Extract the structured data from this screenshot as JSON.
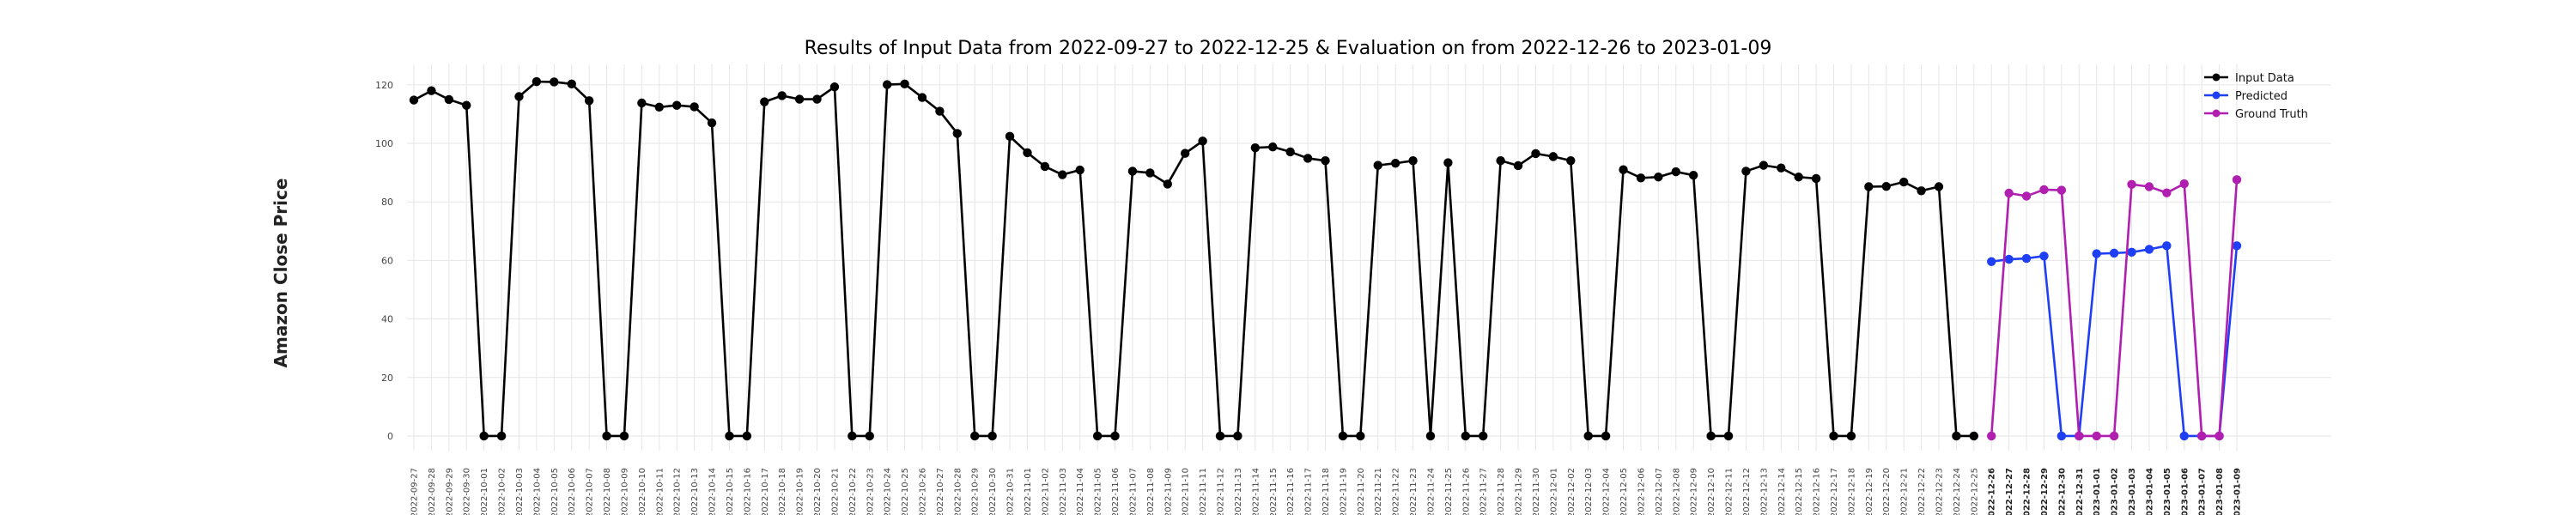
{
  "chart_data": {
    "type": "line",
    "title": "Results of Input Data from 2022-09-27 to 2022-12-25 & Evaluation on from 2022-12-26 to 2023-01-09",
    "xlabel": "",
    "ylabel": "Amazon Close Price",
    "ylim": [
      -5,
      127
    ],
    "yticks": [
      0,
      20,
      40,
      60,
      80,
      100,
      120
    ],
    "grid": true,
    "legend_position": "top-right",
    "x_tick_labels": [
      "2022-09-27",
      "2022-09-28",
      "2022-09-29",
      "2022-09-30",
      "2022-10-01",
      "2022-10-02",
      "2022-10-03",
      "2022-10-04",
      "2022-10-05",
      "2022-10-06",
      "2022-10-07",
      "2022-10-08",
      "2022-10-09",
      "2022-10-10",
      "2022-10-11",
      "2022-10-12",
      "2022-10-13",
      "2022-10-14",
      "2022-10-15",
      "2022-10-16",
      "2022-10-17",
      "2022-10-18",
      "2022-10-19",
      "2022-10-20",
      "2022-10-21",
      "2022-10-22",
      "2022-10-23",
      "2022-10-24",
      "2022-10-25",
      "2022-10-26",
      "2022-10-27",
      "2022-10-28",
      "2022-10-29",
      "2022-10-30",
      "2022-10-31",
      "2022-11-01",
      "2022-11-02",
      "2022-11-03",
      "2022-11-04",
      "2022-11-05",
      "2022-11-06",
      "2022-11-07",
      "2022-11-08",
      "2022-11-09",
      "2022-11-10",
      "2022-11-11",
      "2022-11-12",
      "2022-11-13",
      "2022-11-14",
      "2022-11-15",
      "2022-11-16",
      "2022-11-17",
      "2022-11-18",
      "2022-11-19",
      "2022-11-20",
      "2022-11-21",
      "2022-11-22",
      "2022-11-23",
      "2022-11-24",
      "2022-11-25",
      "2022-11-26",
      "2022-11-27",
      "2022-11-28",
      "2022-11-29",
      "2022-11-30",
      "2022-12-01",
      "2022-12-02",
      "2022-12-03",
      "2022-12-04",
      "2022-12-05",
      "2022-12-06",
      "2022-12-07",
      "2022-12-08",
      "2022-12-09",
      "2022-12-10",
      "2022-12-11",
      "2022-12-12",
      "2022-12-13",
      "2022-12-14",
      "2022-12-15",
      "2022-12-16",
      "2022-12-17",
      "2022-12-18",
      "2022-12-19",
      "2022-12-20",
      "2022-12-21",
      "2022-12-22",
      "2022-12-23",
      "2022-12-24",
      "2022-12-25",
      "2022-12-26",
      "2022-12-27",
      "2022-12-28",
      "2022-12-29",
      "2022-12-30",
      "2022-12-31",
      "2023-01-01",
      "2023-01-02",
      "2023-01-03",
      "2023-01-04",
      "2023-01-05",
      "2023-01-06",
      "2023-01-07",
      "2023-01-08",
      "2023-01-09"
    ],
    "series": [
      {
        "name": "Input Data",
        "color": "#000000",
        "x_start": "2022-09-27",
        "values": [
          114.8,
          118.0,
          115.0,
          113.0,
          0,
          0,
          116.0,
          121.1,
          121.0,
          120.3,
          114.6,
          0,
          0,
          113.8,
          112.4,
          113.0,
          112.5,
          107.0,
          0,
          0,
          114.2,
          116.3,
          115.1,
          115.1,
          119.3,
          0,
          0,
          120.1,
          120.3,
          115.7,
          111.0,
          103.4,
          0,
          0,
          102.4,
          96.8,
          92.1,
          89.3,
          90.9,
          0,
          0,
          90.5,
          89.9,
          86.1,
          96.6,
          100.8,
          0,
          0,
          98.5,
          98.8,
          97.1,
          94.9,
          94.1,
          0,
          0,
          92.5,
          93.2,
          94.1,
          0,
          93.4,
          0,
          0,
          94.1,
          92.4,
          96.5,
          95.5,
          94.1,
          0,
          0,
          91.0,
          88.2,
          88.5,
          90.3,
          89.1,
          0,
          0,
          90.5,
          92.5,
          91.6,
          88.5,
          88.0,
          0,
          0,
          85.2,
          85.3,
          86.8,
          83.8,
          85.2,
          0,
          0
        ]
      },
      {
        "name": "Predicted",
        "color": "#1f3ff5",
        "x_start": "2022-12-26",
        "values": [
          59.6,
          60.4,
          60.7,
          61.5,
          0,
          0,
          62.3,
          62.5,
          62.8,
          63.8,
          65.0,
          0,
          0,
          0,
          65.0
        ]
      },
      {
        "name": "Ground Truth",
        "color": "#b01fb0",
        "x_start": "2022-12-26",
        "values": [
          0,
          83.0,
          82.0,
          84.2,
          84.0,
          0,
          0,
          0,
          86.0,
          85.2,
          83.1,
          86.2,
          0,
          0,
          87.6
        ]
      }
    ]
  }
}
